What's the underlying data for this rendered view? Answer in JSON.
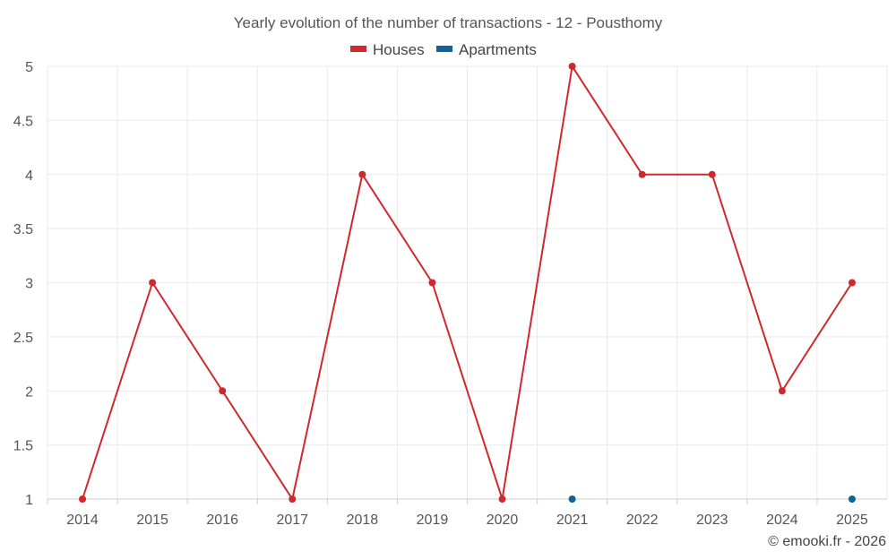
{
  "chart_data": {
    "type": "line",
    "title": "Yearly evolution of the number of transactions - 12 - Pousthomy",
    "categories": [
      "2014",
      "2015",
      "2016",
      "2017",
      "2018",
      "2019",
      "2020",
      "2021",
      "2022",
      "2023",
      "2024",
      "2025"
    ],
    "ylim": [
      1,
      5
    ],
    "yticks": [
      "1",
      "1.5",
      "2",
      "2.5",
      "3",
      "3.5",
      "4",
      "4.5",
      "5"
    ],
    "grid": true,
    "legend_position": "top-center",
    "series": [
      {
        "name": "Houses",
        "color": "#d0282c",
        "values": [
          1,
          3,
          2,
          1,
          4,
          3,
          1,
          5,
          4,
          4,
          2,
          3
        ]
      },
      {
        "name": "Apartments",
        "color": "#0d6496",
        "values": [
          null,
          null,
          null,
          null,
          null,
          null,
          null,
          1,
          null,
          null,
          null,
          1
        ]
      }
    ],
    "credit": "© emooki.fr - 2026"
  }
}
